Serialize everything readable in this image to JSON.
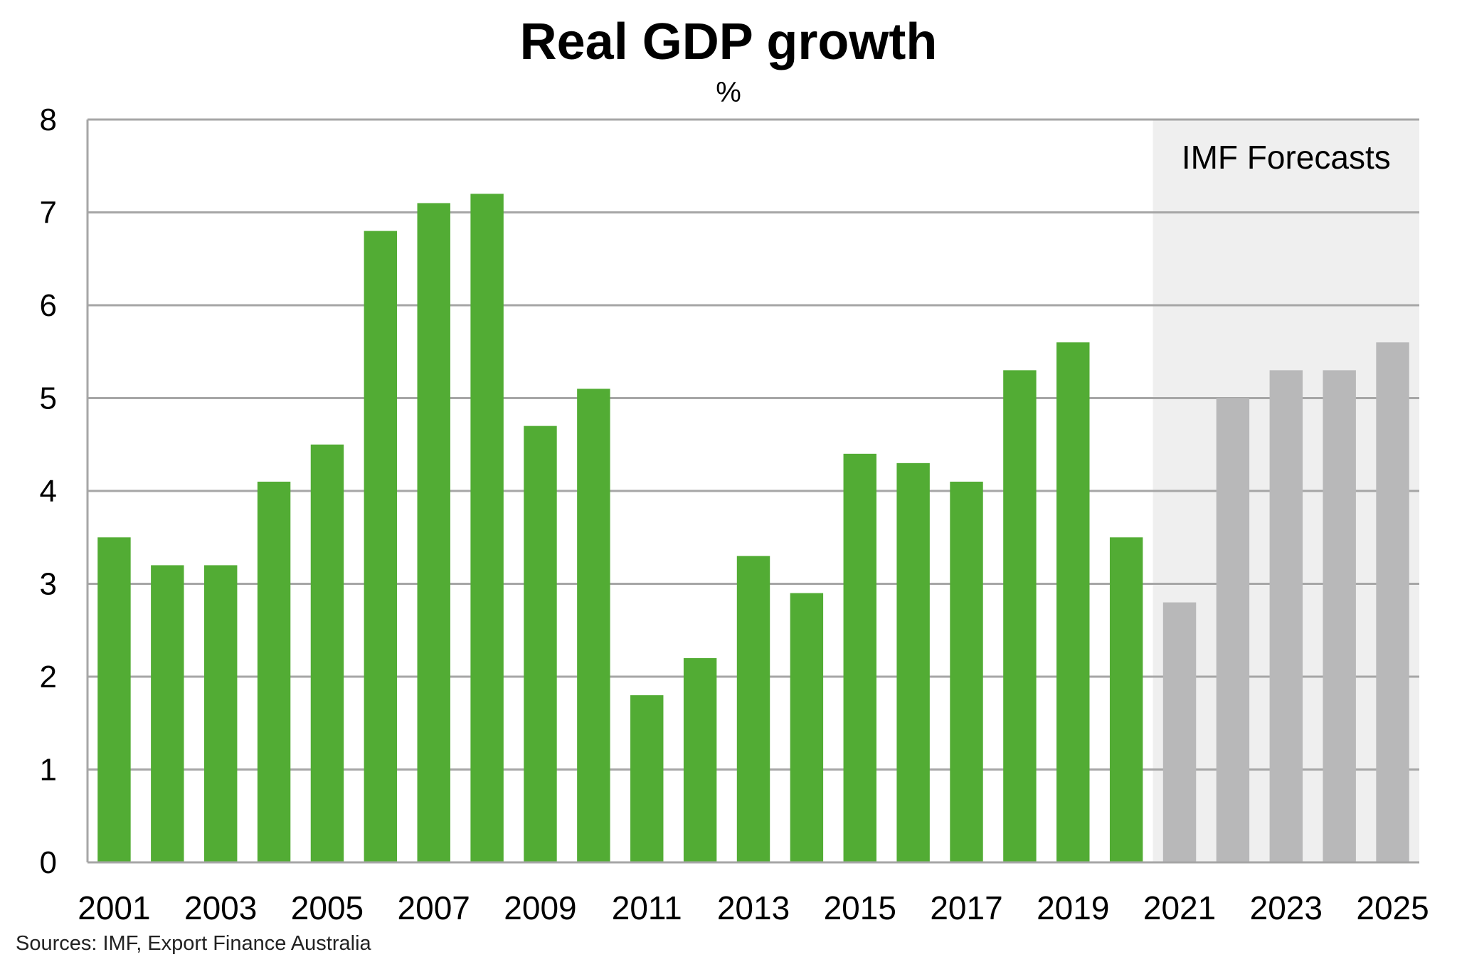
{
  "chart_data": {
    "type": "bar",
    "title": "Real GDP growth",
    "unit": "%",
    "categories": [
      "2001",
      "2002",
      "2003",
      "2004",
      "2005",
      "2006",
      "2007",
      "2008",
      "2009",
      "2010",
      "2011",
      "2012",
      "2013",
      "2014",
      "2015",
      "2016",
      "2017",
      "2018",
      "2019",
      "2020",
      "2021",
      "2022",
      "2023",
      "2024",
      "2025"
    ],
    "values": [
      3.5,
      3.2,
      3.2,
      4.1,
      4.5,
      6.8,
      7.1,
      7.2,
      4.7,
      5.1,
      1.8,
      2.2,
      3.3,
      2.9,
      4.4,
      4.3,
      4.1,
      5.3,
      5.6,
      3.5,
      2.8,
      5.0,
      5.3,
      5.3,
      5.6
    ],
    "forecast_start": "2021",
    "tick_labels": [
      "2001",
      "2003",
      "2005",
      "2007",
      "2009",
      "2011",
      "2013",
      "2015",
      "2017",
      "2019",
      "2021",
      "2023",
      "2025"
    ],
    "yticks": [
      0,
      1,
      2,
      3,
      4,
      5,
      6,
      7,
      8
    ],
    "ylim": [
      0,
      8
    ],
    "xlabel": "",
    "ylabel": "",
    "annotation": "IMF Forecasts",
    "grid": true,
    "colors": {
      "actual": "#52ac34",
      "forecast": "#b8b8b9",
      "forecast_band": "#efefef",
      "grid": "#a6a6a6"
    }
  },
  "source": "Sources: IMF, Export Finance Australia"
}
